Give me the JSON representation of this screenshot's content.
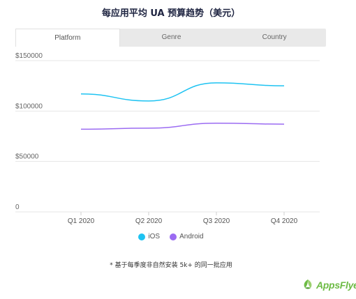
{
  "title": "每应用平均 UA 预算趋势（美元）",
  "tabs": [
    {
      "label": "Platform",
      "active": true
    },
    {
      "label": "Genre",
      "active": false
    },
    {
      "label": "Country",
      "active": false
    }
  ],
  "chart_data": {
    "type": "line",
    "categories": [
      "Q1 2020",
      "Q2 2020",
      "Q3 2020",
      "Q4 2020"
    ],
    "ylim": [
      0,
      150000
    ],
    "yticks": [
      0,
      50000,
      100000,
      150000
    ],
    "ytick_labels": [
      "0",
      "$50000",
      "$100000",
      "$150000"
    ],
    "series": [
      {
        "name": "iOS",
        "color": "#1ec3f2",
        "values": [
          117000,
          110000,
          128000,
          125000
        ]
      },
      {
        "name": "Android",
        "color": "#9b6bf2",
        "values": [
          82000,
          83000,
          88000,
          87000
        ]
      }
    ],
    "grid": true,
    "legend": "bottom-center"
  },
  "footnote": "* 基于每季度非自然安装 5k+ 的同一批应用",
  "brand": {
    "name": "AppsFlyer",
    "color": "#6dbb45"
  }
}
